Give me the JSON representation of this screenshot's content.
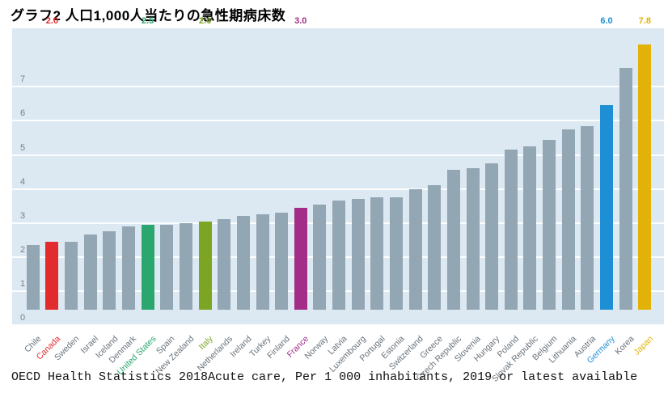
{
  "title": "グラフ2 人口1,000人当たりの急性期病床数",
  "footer": "OECD Health Statistics 2018Acute care, Per 1 000 inhabitants, 2019 or latest available",
  "chart_data": {
    "type": "bar",
    "title": "グラフ2 人口1,000人当たりの急性期病床数",
    "source_note": "OECD Health Statistics 2018Acute care, Per 1 000 inhabitants, 2019 or latest available",
    "xlabel": "",
    "ylabel": "",
    "ylim": [
      0,
      8
    ],
    "yticks": [
      0,
      1,
      2,
      3,
      4,
      5,
      6,
      7
    ],
    "grid": "horizontal-white-lines",
    "legend": "none",
    "categories": [
      "Chile",
      "Canada",
      "Sweden",
      "Israel",
      "Iceland",
      "Denmark",
      "United States",
      "Spain",
      "New Zealand",
      "Italy",
      "Netherlands",
      "Ireland",
      "Turkey",
      "Finland",
      "France",
      "Norway",
      "Latvia",
      "Luxembourg",
      "Portugal",
      "Estonia",
      "Switzerland",
      "Greece",
      "Czech Republic",
      "Slovenia",
      "Hungary",
      "Poland",
      "Slovak Republic",
      "Belgium",
      "Lithuania",
      "Austria",
      "Germany",
      "Korea",
      "Japan"
    ],
    "values": [
      1.9,
      2.0,
      2.0,
      2.2,
      2.3,
      2.45,
      2.5,
      2.5,
      2.55,
      2.6,
      2.65,
      2.75,
      2.8,
      2.85,
      3.0,
      3.1,
      3.2,
      3.25,
      3.3,
      3.3,
      3.55,
      3.65,
      4.1,
      4.15,
      4.3,
      4.7,
      4.8,
      5.0,
      5.3,
      5.4,
      6.0,
      7.1,
      7.8
    ],
    "bar_default_color": "#92a6b3",
    "panel_background": "#dde9f2",
    "gridline_color": "#fbfdfe",
    "tick_text_color": "#75808a",
    "xlabel_text_color": "#68727b",
    "highlights": {
      "Canada": {
        "color": "#e22b2d",
        "value_label": "2.0"
      },
      "United States": {
        "color": "#2aa66e",
        "value_label": "2.5"
      },
      "Italy": {
        "color": "#7ba522",
        "value_label": "2.6"
      },
      "France": {
        "color": "#a32c88",
        "value_label": "3.0"
      },
      "Germany": {
        "color": "#1e8fd5",
        "value_label": "6.0"
      },
      "Japan": {
        "color": "#e2b209",
        "value_label": "7.8"
      }
    }
  }
}
